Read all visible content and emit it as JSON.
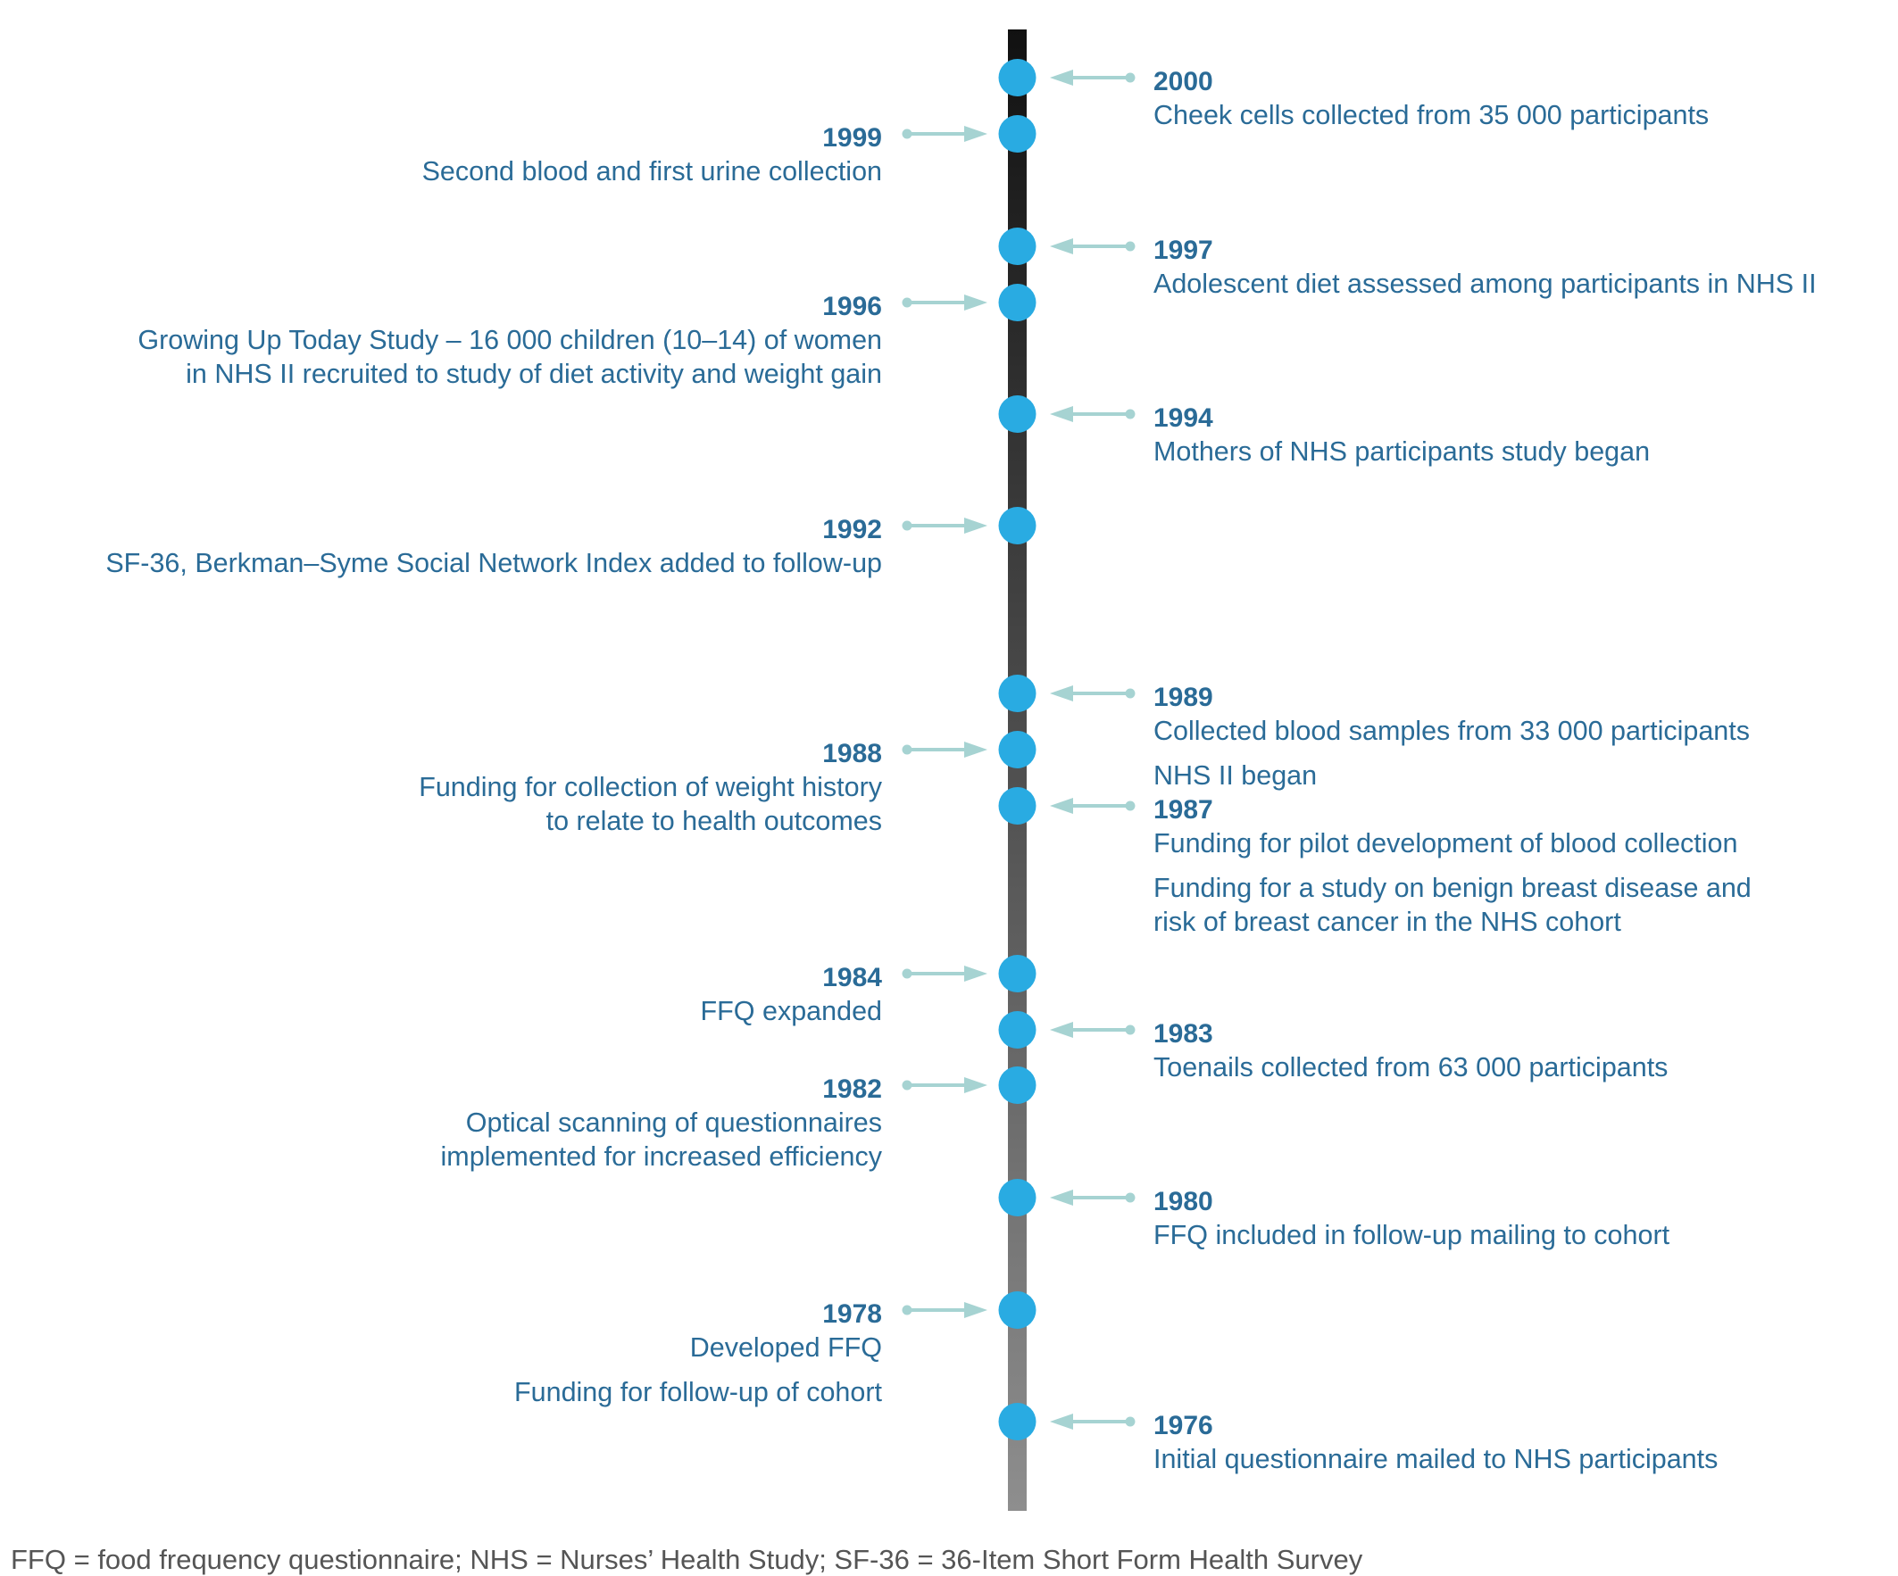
{
  "colors": {
    "text": "#2a6b97",
    "dot": "#29abe2",
    "arrow": "#a6d3d2",
    "axis_top": "#111111",
    "axis_bottom": "#8e8e8e",
    "footnote": "#555555"
  },
  "events_right": [
    {
      "year": "2000",
      "lines": [
        "Cheek cells collected from 35 000 participants"
      ]
    },
    {
      "year": "1997",
      "lines": [
        "Adolescent diet assessed among participants in NHS II"
      ]
    },
    {
      "year": "1994",
      "lines": [
        "Mothers of NHS participants study began"
      ]
    },
    {
      "year": "1989",
      "lines": [
        "Collected blood samples from 33 000 participants"
      ],
      "extra_lines": [
        "NHS II began"
      ]
    },
    {
      "year": "1987",
      "lines": [
        "Funding for pilot development of blood collection"
      ],
      "extra_lines": [
        "Funding for a study on benign breast disease and",
        "risk of breast cancer in the NHS cohort"
      ]
    },
    {
      "year": "1983",
      "lines": [
        "Toenails collected from 63 000 participants"
      ]
    },
    {
      "year": "1980",
      "lines": [
        "FFQ included in follow-up mailing to cohort"
      ]
    },
    {
      "year": "1976",
      "lines": [
        "Initial questionnaire mailed to NHS participants"
      ]
    }
  ],
  "events_left": [
    {
      "year": "1999",
      "lines": [
        "Second blood and first urine collection"
      ]
    },
    {
      "year": "1996",
      "lines": [
        "Growing Up Today Study – 16 000 children (10–14) of women",
        "in NHS II recruited to study of diet activity and weight gain"
      ]
    },
    {
      "year": "1992",
      "lines": [
        "SF-36, Berkman–Syme Social Network Index added to follow-up"
      ]
    },
    {
      "year": "1988",
      "lines": [
        "Funding for collection of weight history",
        "to relate to health outcomes"
      ]
    },
    {
      "year": "1984",
      "lines": [
        "FFQ expanded"
      ]
    },
    {
      "year": "1982",
      "lines": [
        "Optical scanning of questionnaires",
        "implemented for increased efficiency"
      ]
    },
    {
      "year": "1978",
      "lines": [
        "Developed FFQ"
      ],
      "extra_lines": [
        "Funding for follow-up of cohort"
      ]
    }
  ],
  "footnote": "FFQ = food frequency questionnaire; NHS = Nurses’ Health Study; SF-36 = 36-Item Short Form Health Survey"
}
